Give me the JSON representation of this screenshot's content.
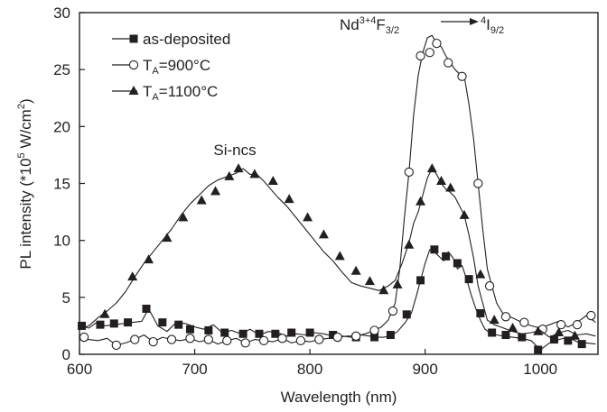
{
  "chart_data": {
    "type": "line",
    "xlabel": "Wavelength (nm)",
    "ylabel": {
      "main": "PL intensity (*10",
      "exp": "5",
      "unit": " W/cm",
      "unit_exp": "2",
      "close": ")"
    },
    "xlim": [
      600,
      1050
    ],
    "ylim": [
      0,
      30
    ],
    "xticks": [
      600,
      700,
      800,
      900,
      1000
    ],
    "yticks": [
      0,
      5,
      10,
      15,
      20,
      25,
      30
    ],
    "grid": false,
    "legend_position": "top-left",
    "annotations": {
      "si_ncs": "Si-ncs",
      "nd_transition": {
        "base": "Nd",
        "ion_sup": "3+",
        "state1_sup": "4",
        "state1": "F",
        "state1_sub": "3/2",
        "state2_sup": "4",
        "state2": "I",
        "state2_sub": "9/2"
      }
    },
    "series": [
      {
        "name": "as-deposited",
        "legend": {
          "main": "as-deposited",
          "sub": ""
        },
        "marker": "filled-square",
        "color": "#231f20",
        "x": [
          600,
          608,
          615,
          622,
          630,
          638,
          646,
          654,
          660,
          668,
          676,
          684,
          692,
          700,
          708,
          716,
          724,
          732,
          740,
          748,
          756,
          764,
          772,
          780,
          788,
          796,
          804,
          812,
          820,
          828,
          836,
          844,
          852,
          858,
          864,
          870,
          876,
          882,
          888,
          892,
          896,
          900,
          904,
          908,
          912,
          916,
          920,
          924,
          928,
          932,
          936,
          940,
          944,
          948,
          952,
          956,
          962,
          968,
          976,
          984,
          992,
          1000,
          1008,
          1016,
          1024,
          1032,
          1040,
          1048
        ],
        "y": [
          2.5,
          2.3,
          2.8,
          2.5,
          2.6,
          2.7,
          2.8,
          2.9,
          4.0,
          2.5,
          2.0,
          2.8,
          2.7,
          2.4,
          2.2,
          2.6,
          1.9,
          2.1,
          1.8,
          2.2,
          1.7,
          2.0,
          1.9,
          1.6,
          1.8,
          1.7,
          1.9,
          1.8,
          1.6,
          1.6,
          1.5,
          1.7,
          1.6,
          1.5,
          1.5,
          1.6,
          2.0,
          2.7,
          3.6,
          5.0,
          6.5,
          8.0,
          9.2,
          9.0,
          8.6,
          8.2,
          9.0,
          8.5,
          7.5,
          7.8,
          6.6,
          5.2,
          4.0,
          3.0,
          2.2,
          1.9,
          1.7,
          1.6,
          1.5,
          1.4,
          1.2,
          0.4,
          1.0,
          1.3,
          1.5,
          1.1,
          1.0,
          0.9
        ],
        "marker_x": [
          602,
          618,
          630,
          642,
          658,
          672,
          686,
          696,
          712,
          726,
          742,
          756,
          770,
          784,
          800,
          820,
          840,
          856,
          870,
          884,
          896,
          908,
          918,
          928,
          938,
          948,
          958,
          970,
          984,
          998,
          1012,
          1024,
          1036
        ],
        "marker_y": [
          2.5,
          2.6,
          2.7,
          2.8,
          4.0,
          2.8,
          2.6,
          2.2,
          2.1,
          1.9,
          1.8,
          1.8,
          1.8,
          1.9,
          1.9,
          1.7,
          1.5,
          1.5,
          1.7,
          3.5,
          6.5,
          9.2,
          8.6,
          8.0,
          6.6,
          3.6,
          1.9,
          1.7,
          1.5,
          0.4,
          1.3,
          1.2,
          0.9
        ]
      },
      {
        "name": "T_A=900°C",
        "legend": {
          "main": "T",
          "sub": "A",
          "rest": "=900°C"
        },
        "marker": "open-circle",
        "color": "#231f20",
        "x": [
          600,
          608,
          616,
          624,
          632,
          640,
          648,
          656,
          664,
          672,
          680,
          688,
          696,
          704,
          712,
          720,
          728,
          736,
          744,
          752,
          760,
          768,
          776,
          784,
          792,
          800,
          808,
          816,
          824,
          832,
          840,
          848,
          856,
          862,
          868,
          874,
          878,
          882,
          886,
          890,
          894,
          898,
          902,
          906,
          910,
          914,
          918,
          922,
          926,
          930,
          934,
          938,
          942,
          946,
          950,
          954,
          958,
          962,
          968,
          976,
          984,
          992,
          1000,
          1008,
          1016,
          1024,
          1032,
          1040,
          1048
        ],
        "y": [
          1.5,
          1.3,
          1.2,
          1.4,
          0.8,
          1.0,
          1.3,
          1.7,
          1.1,
          1.5,
          1.3,
          1.2,
          1.4,
          1.1,
          1.3,
          0.9,
          1.2,
          1.4,
          1.0,
          1.3,
          1.2,
          1.1,
          1.4,
          1.0,
          1.2,
          1.1,
          1.3,
          1.4,
          1.5,
          1.6,
          1.6,
          1.8,
          2.1,
          2.4,
          3.0,
          4.5,
          7.5,
          12.0,
          16.0,
          21.0,
          24.5,
          26.5,
          27.8,
          28.0,
          27.3,
          27.0,
          26.2,
          25.6,
          25.0,
          24.6,
          24.4,
          22.0,
          19.0,
          15.0,
          11.0,
          7.5,
          6.0,
          4.5,
          3.5,
          3.2,
          2.8,
          2.5,
          2.3,
          2.6,
          2.9,
          2.4,
          2.8,
          3.4,
          2.8
        ],
        "marker_x": [
          604,
          632,
          648,
          664,
          680,
          696,
          712,
          728,
          744,
          760,
          776,
          792,
          808,
          824,
          840,
          856,
          872,
          886,
          896,
          904,
          910,
          920,
          932,
          946,
          956,
          970,
          986,
          1002,
          1018,
          1032,
          1044
        ],
        "marker_y": [
          1.5,
          0.8,
          1.3,
          1.1,
          1.3,
          1.4,
          1.3,
          1.2,
          1.0,
          1.2,
          1.4,
          1.2,
          1.3,
          1.5,
          1.6,
          2.1,
          3.8,
          16.0,
          26.2,
          26.5,
          27.3,
          25.6,
          24.4,
          15.0,
          6.0,
          3.3,
          2.8,
          2.2,
          2.6,
          2.6,
          3.4
        ]
      },
      {
        "name": "T_A=1100°C",
        "legend": {
          "main": "T",
          "sub": "A",
          "rest": "=1100°C"
        },
        "marker": "filled-triangle",
        "color": "#231f20",
        "x": [
          600,
          608,
          616,
          624,
          632,
          640,
          648,
          656,
          664,
          672,
          680,
          688,
          696,
          704,
          712,
          720,
          728,
          736,
          742,
          748,
          754,
          760,
          766,
          772,
          780,
          788,
          796,
          804,
          812,
          820,
          828,
          836,
          844,
          852,
          860,
          868,
          874,
          880,
          886,
          890,
          894,
          898,
          902,
          906,
          910,
          914,
          918,
          922,
          926,
          930,
          934,
          938,
          942,
          946,
          950,
          954,
          960,
          968,
          976,
          984,
          992,
          1000,
          1008,
          1016,
          1024,
          1032,
          1040,
          1048
        ],
        "y": [
          2.2,
          2.5,
          3.2,
          3.8,
          4.5,
          5.5,
          6.8,
          8.0,
          9.0,
          10.0,
          11.0,
          12.2,
          13.2,
          14.0,
          14.8,
          15.3,
          15.6,
          15.9,
          16.3,
          15.8,
          15.8,
          15.2,
          14.5,
          13.8,
          13.0,
          12.0,
          11.0,
          10.0,
          9.0,
          8.2,
          7.2,
          6.3,
          6.0,
          5.8,
          5.6,
          6.0,
          6.5,
          8.0,
          9.8,
          11.5,
          12.5,
          14.0,
          15.5,
          16.3,
          15.8,
          15.0,
          14.5,
          14.2,
          13.8,
          13.0,
          12.2,
          10.5,
          8.5,
          6.0,
          4.5,
          3.0,
          2.6,
          2.3,
          2.0,
          1.8,
          1.9,
          2.1,
          1.5,
          1.9,
          2.1,
          1.7,
          1.8,
          1.6
        ],
        "marker_x": [
          622,
          646,
          660,
          676,
          690,
          706,
          718,
          730,
          738,
          752,
          768,
          782,
          798,
          812,
          826,
          840,
          852,
          864,
          876,
          886,
          896,
          906,
          914,
          922,
          934,
          948,
          960,
          976,
          998,
          1016,
          1030
        ],
        "marker_y": [
          3.5,
          6.8,
          8.3,
          10.2,
          12.0,
          13.5,
          14.3,
          15.6,
          16.3,
          15.8,
          15.2,
          13.6,
          12.0,
          10.5,
          8.6,
          7.3,
          6.4,
          5.6,
          6.1,
          9.6,
          13.4,
          16.3,
          15.2,
          14.6,
          12.2,
          7.0,
          3.0,
          2.3,
          2.0,
          1.9,
          1.6
        ]
      }
    ]
  }
}
